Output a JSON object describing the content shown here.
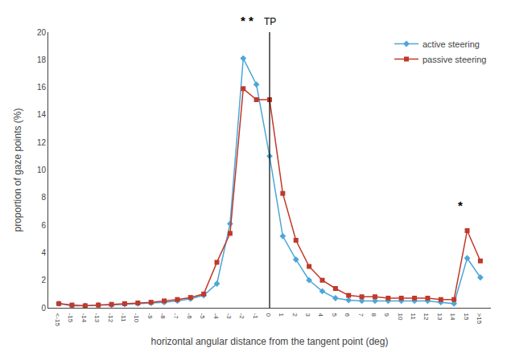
{
  "chart_data": {
    "type": "line",
    "xlabel": "horizontal angular distance from the tangent point (deg)",
    "ylabel": "proportion of gaze points (%)",
    "x": [
      -16,
      -15,
      -14,
      -13,
      -12,
      -11,
      -10,
      -9,
      -8,
      -7,
      -6,
      -5,
      -4,
      -3,
      -2,
      -1,
      0,
      1,
      2,
      3,
      4,
      5,
      6,
      7,
      8,
      9,
      10,
      11,
      12,
      13,
      14,
      15,
      16
    ],
    "series": [
      {
        "name": "active steering",
        "color": "#4da6d8",
        "marker": "diamond",
        "values": [
          0.3,
          0.15,
          0.15,
          0.2,
          0.2,
          0.25,
          0.3,
          0.35,
          0.4,
          0.5,
          0.65,
          0.9,
          1.75,
          6.1,
          18.1,
          16.2,
          11.0,
          5.2,
          3.5,
          2.0,
          1.2,
          0.7,
          0.55,
          0.5,
          0.5,
          0.5,
          0.5,
          0.5,
          0.5,
          0.4,
          0.3,
          3.6,
          2.2
        ]
      },
      {
        "name": "passive steering",
        "color": "#c0392b",
        "marker": "square",
        "values": [
          0.3,
          0.2,
          0.15,
          0.2,
          0.25,
          0.3,
          0.35,
          0.4,
          0.5,
          0.6,
          0.75,
          1.0,
          3.3,
          5.4,
          15.9,
          15.1,
          15.1,
          8.3,
          4.9,
          3.0,
          2.0,
          1.4,
          0.9,
          0.8,
          0.8,
          0.7,
          0.7,
          0.7,
          0.7,
          0.6,
          0.6,
          5.6,
          3.4
        ]
      }
    ],
    "xlim": [
      -16.8,
      16.8
    ],
    "xticks": [
      {
        "value": -16,
        "label": "<-15"
      },
      -15,
      -14,
      -13,
      -12,
      -11,
      -10,
      -9,
      -8,
      -7,
      -6,
      -5,
      -4,
      -3,
      -2,
      -1,
      0,
      1,
      2,
      3,
      4,
      5,
      6,
      7,
      8,
      9,
      10,
      11,
      12,
      13,
      14,
      15,
      {
        "value": 16,
        "label": ">15"
      }
    ],
    "ylim": [
      0,
      20
    ],
    "yticks": [
      0,
      2,
      4,
      6,
      8,
      10,
      12,
      14,
      16,
      18,
      20
    ],
    "vline": {
      "x": 0,
      "label": "TP"
    },
    "annotations": [
      {
        "text": "* *",
        "x": -1.7
      },
      {
        "text": "*",
        "x": 14.5,
        "y": 6.8
      }
    ],
    "grid": false,
    "legend": "upper right"
  }
}
